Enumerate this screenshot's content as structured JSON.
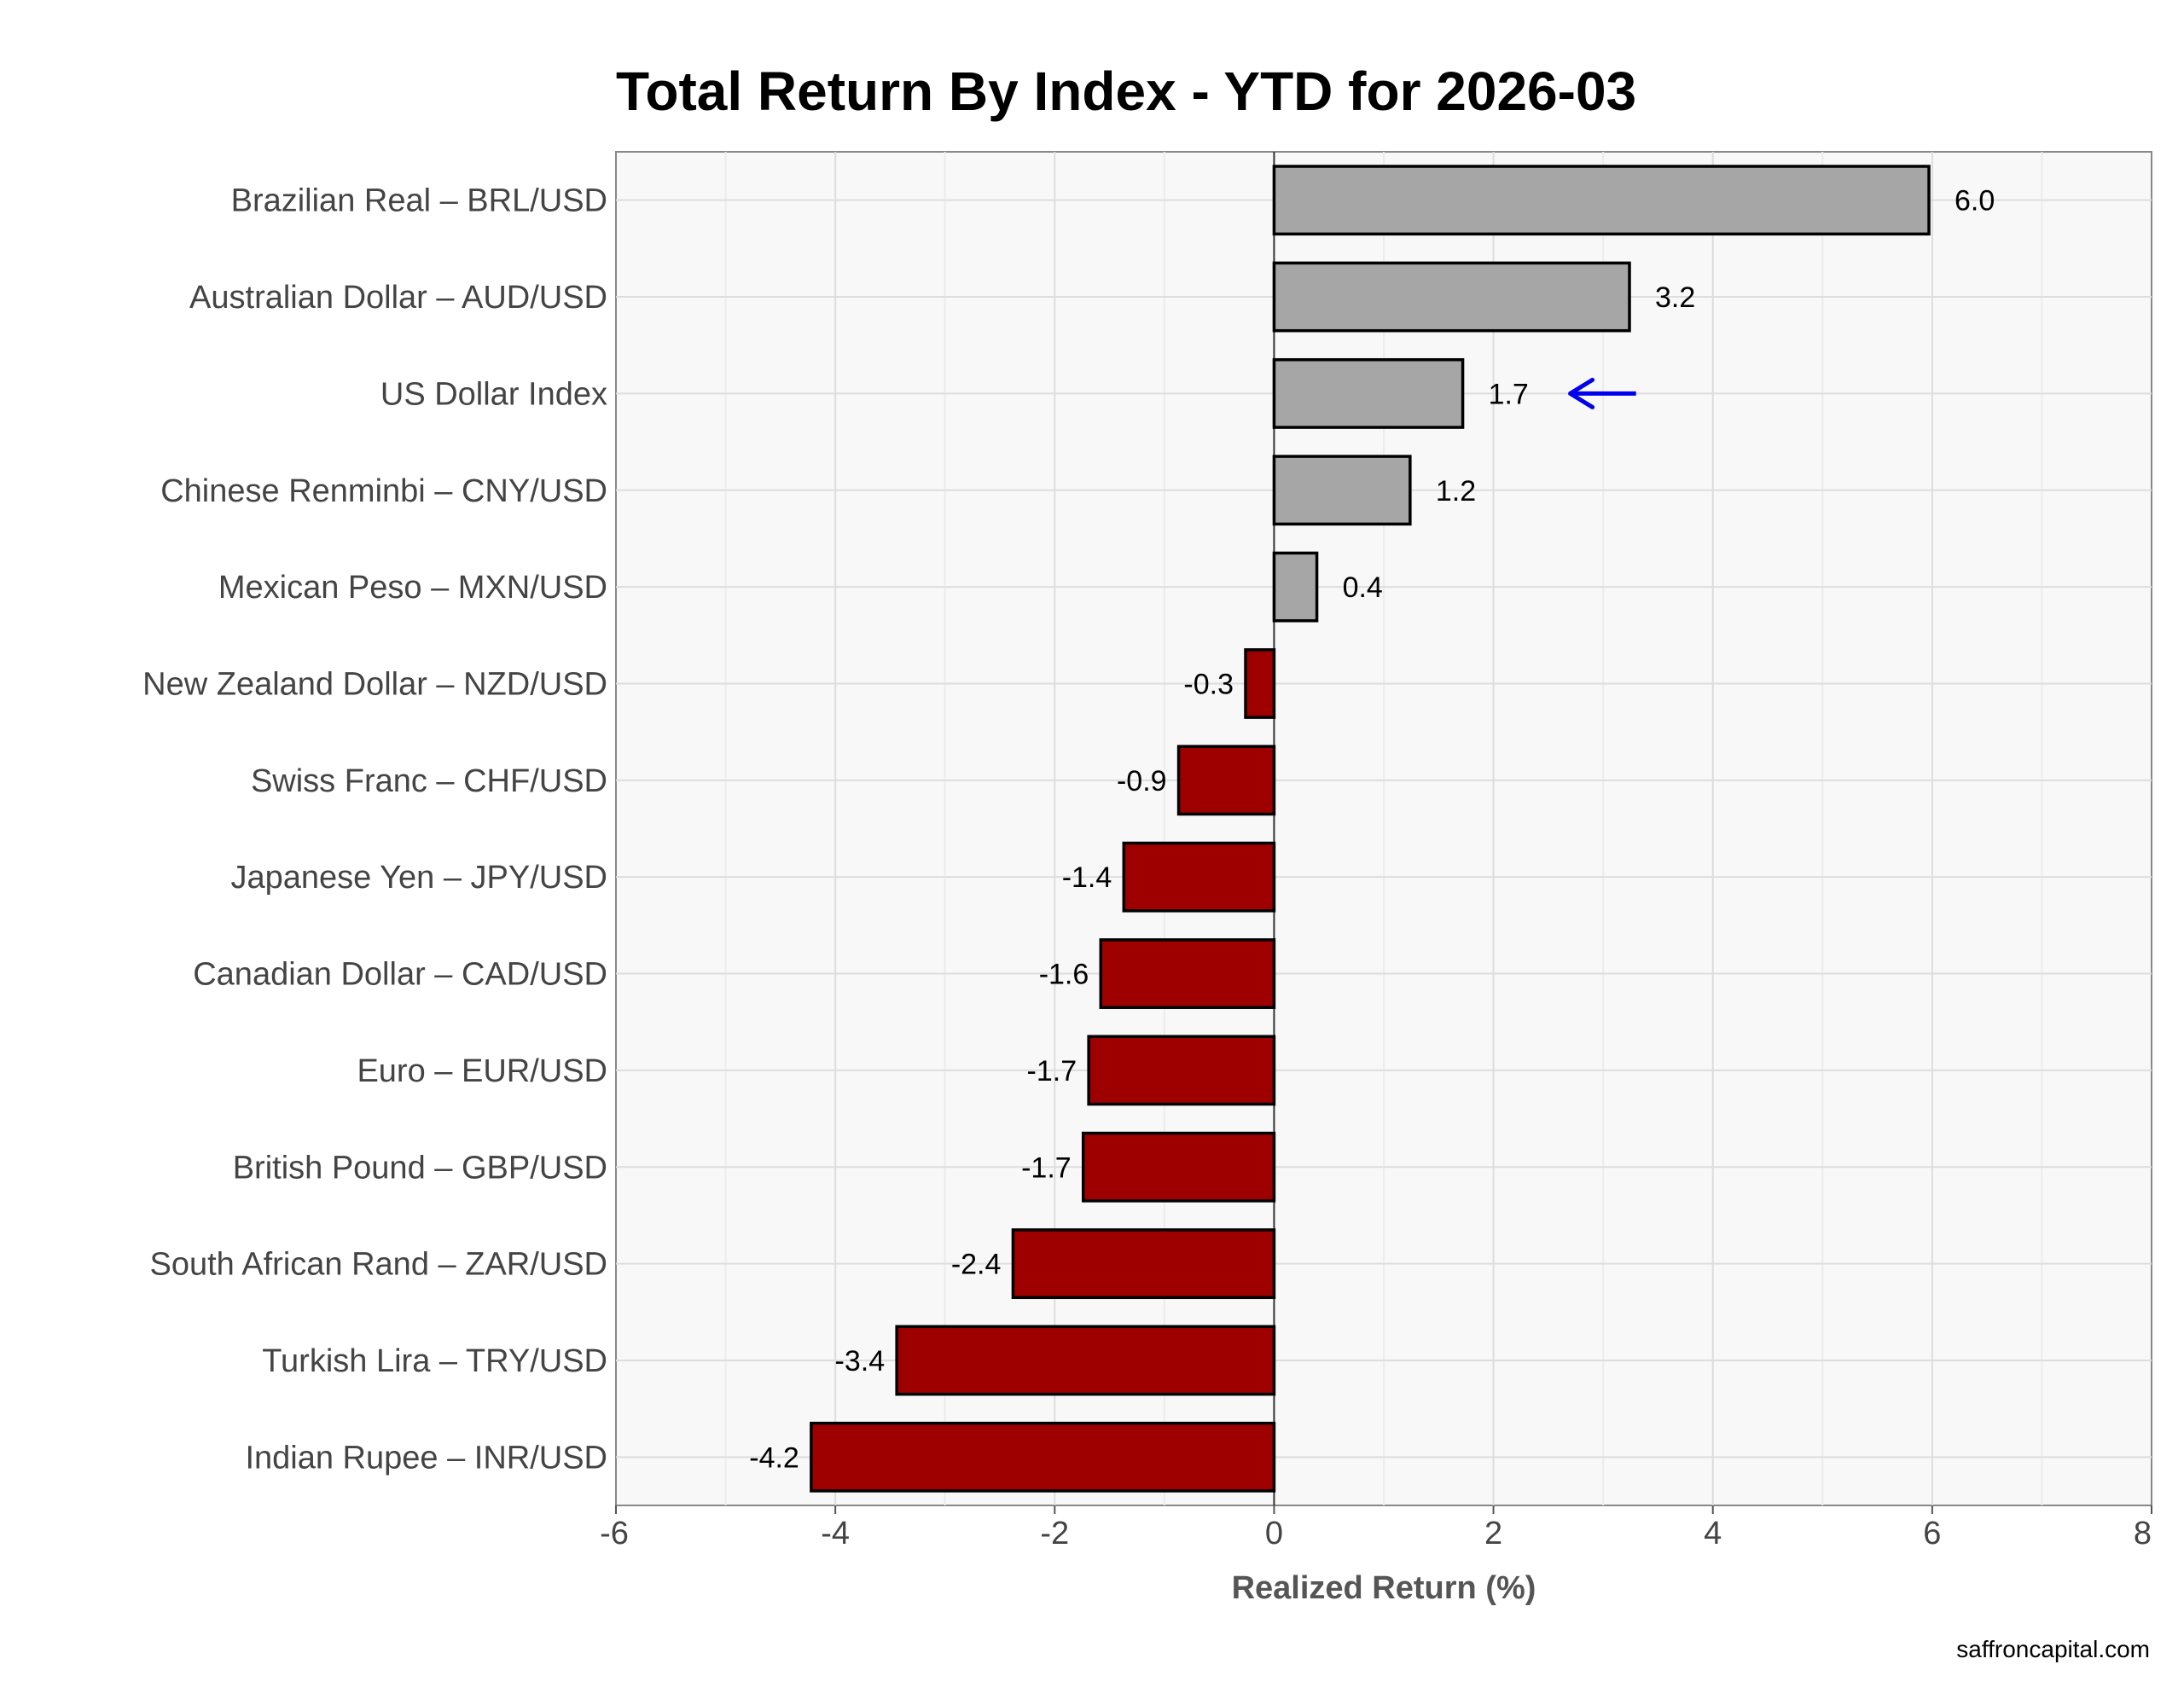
{
  "chart_data": {
    "type": "bar",
    "orientation": "horizontal",
    "title": "Total Return By Index - YTD for 2026-03",
    "xlabel": "Realized Return (%)",
    "ylabel": "",
    "xlim": [
      -6,
      8
    ],
    "xticks": [
      -6,
      -4,
      -2,
      0,
      2,
      4,
      6,
      8
    ],
    "grid": true,
    "categories": [
      "Brazilian Real – BRL/USD",
      "Australian Dollar – AUD/USD",
      "US Dollar Index",
      "Chinese Renminbi – CNY/USD",
      "Mexican Peso – MXN/USD",
      "New Zealand Dollar – NZD/USD",
      "Swiss Franc – CHF/USD",
      "Japanese Yen – JPY/USD",
      "Canadian Dollar – CAD/USD",
      "Euro – EUR/USD",
      "British Pound – GBP/USD",
      "South African Rand – ZAR/USD",
      "Turkish Lira – TRY/USD",
      "Indian Rupee – INR/USD"
    ],
    "values": [
      5.97,
      3.24,
      1.72,
      1.24,
      0.39,
      -0.26,
      -0.87,
      -1.37,
      -1.58,
      -1.69,
      -1.74,
      -2.38,
      -3.44,
      -4.22
    ],
    "value_labels": [
      "6.0",
      "3.2",
      "1.7",
      "1.2",
      "0.4",
      "-0.3",
      "-0.9",
      "-1.4",
      "-1.6",
      "-1.7",
      "-1.7",
      "-2.4",
      "-3.4",
      "-4.2"
    ],
    "highlight_category": "US Dollar Index",
    "annotation": "arrow pointing at US Dollar Index",
    "colors": {
      "positive": "#a6a6a6",
      "negative": "#9e0000",
      "bar_outline": "#000000",
      "panel_background": "#f8f8f8",
      "grid": "#dddddd",
      "arrow": "#0000ee"
    }
  },
  "footer": {
    "source": "saffroncapital.com"
  }
}
